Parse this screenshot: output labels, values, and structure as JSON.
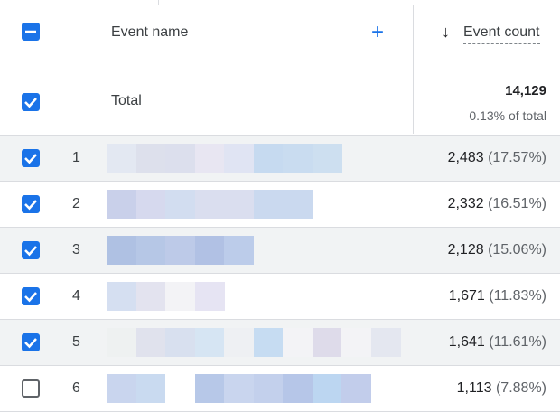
{
  "table": {
    "header": {
      "name": "Event name",
      "add": "+",
      "sort_arrow": "↓",
      "metric": "Event count"
    },
    "total": {
      "label": "Total",
      "value": "14,129",
      "share": "0.13% of total"
    },
    "rows": [
      {
        "rank": "1",
        "count": "2,483",
        "share": "(17.57%)",
        "checked": true
      },
      {
        "rank": "2",
        "count": "2,332",
        "share": "(16.51%)",
        "checked": true
      },
      {
        "rank": "3",
        "count": "2,128",
        "share": "(15.06%)",
        "checked": true
      },
      {
        "rank": "4",
        "count": "1,671",
        "share": "(11.83%)",
        "checked": true
      },
      {
        "rank": "5",
        "count": "1,641",
        "share": "(11.61%)",
        "checked": true
      },
      {
        "rank": "6",
        "count": "1,113",
        "share": "(7.88%)",
        "checked": false
      }
    ]
  }
}
